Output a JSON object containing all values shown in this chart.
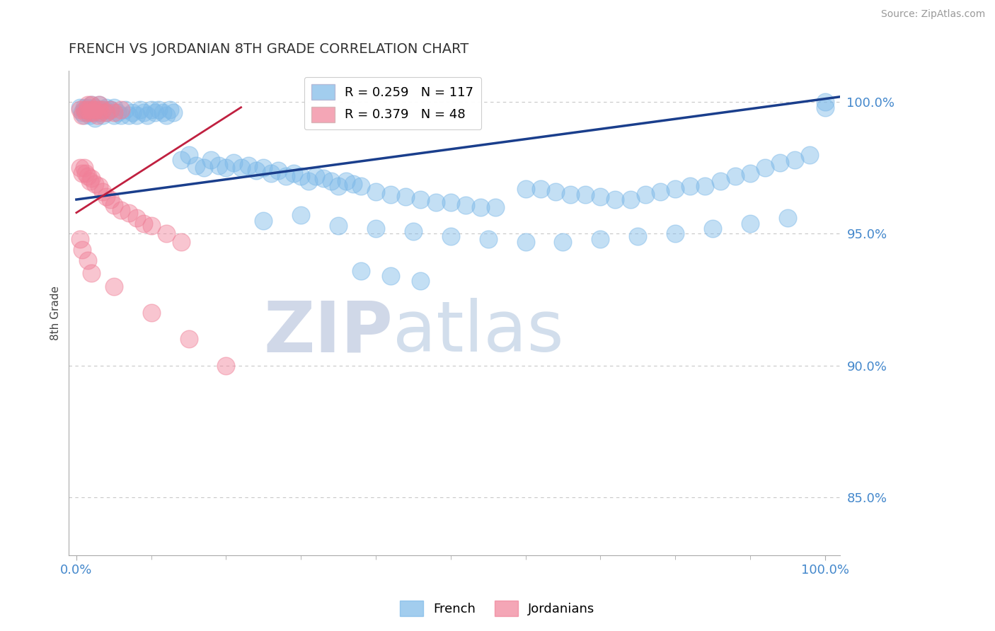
{
  "title": "FRENCH VS JORDANIAN 8TH GRADE CORRELATION CHART",
  "source": "Source: ZipAtlas.com",
  "ylabel": "8th Grade",
  "xlim": [
    -0.01,
    1.02
  ],
  "ylim": [
    0.828,
    1.012
  ],
  "yticks": [
    0.85,
    0.9,
    0.95,
    1.0
  ],
  "ytick_labels": [
    "85.0%",
    "90.0%",
    "95.0%",
    "100.0%"
  ],
  "blue_R": 0.259,
  "blue_N": 117,
  "pink_R": 0.379,
  "pink_N": 48,
  "blue_color": "#7BB8E8",
  "pink_color": "#F08098",
  "blue_line_color": "#1A3E8C",
  "pink_line_color": "#C02040",
  "grid_color": "#C8C8C8",
  "title_color": "#333333",
  "axis_label_color": "#444444",
  "tick_label_color": "#4488CC",
  "watermark_zip": "ZIP",
  "watermark_atlas": "atlas",
  "legend_blue_label": "French",
  "legend_pink_label": "Jordanians",
  "blue_trend_x": [
    0.0,
    1.02
  ],
  "blue_trend_y": [
    0.963,
    1.002
  ],
  "pink_trend_x": [
    0.0,
    0.22
  ],
  "pink_trend_y": [
    0.958,
    0.998
  ],
  "blue_x": [
    0.005,
    0.008,
    0.01,
    0.01,
    0.012,
    0.015,
    0.015,
    0.018,
    0.02,
    0.02,
    0.022,
    0.025,
    0.025,
    0.028,
    0.03,
    0.03,
    0.032,
    0.035,
    0.038,
    0.04,
    0.04,
    0.045,
    0.05,
    0.05,
    0.055,
    0.06,
    0.065,
    0.07,
    0.075,
    0.08,
    0.085,
    0.09,
    0.095,
    0.1,
    0.105,
    0.11,
    0.115,
    0.12,
    0.125,
    0.13,
    0.14,
    0.15,
    0.16,
    0.17,
    0.18,
    0.19,
    0.2,
    0.21,
    0.22,
    0.23,
    0.24,
    0.25,
    0.26,
    0.27,
    0.28,
    0.29,
    0.3,
    0.31,
    0.32,
    0.33,
    0.34,
    0.35,
    0.36,
    0.37,
    0.38,
    0.4,
    0.42,
    0.44,
    0.46,
    0.48,
    0.5,
    0.52,
    0.54,
    0.56,
    0.6,
    0.62,
    0.64,
    0.66,
    0.68,
    0.7,
    0.72,
    0.74,
    0.76,
    0.78,
    0.8,
    0.82,
    0.84,
    0.86,
    0.88,
    0.9,
    0.92,
    0.94,
    0.96,
    0.98,
    1.0,
    0.25,
    0.3,
    0.35,
    0.4,
    0.45,
    0.5,
    0.55,
    0.6,
    0.65,
    0.7,
    0.75,
    0.8,
    0.85,
    0.9,
    0.95,
    1.0,
    0.38,
    0.42,
    0.46
  ],
  "blue_y": [
    0.998,
    0.996,
    0.998,
    0.995,
    0.997,
    0.996,
    0.998,
    0.995,
    0.997,
    0.999,
    0.996,
    0.998,
    0.994,
    0.997,
    0.996,
    0.999,
    0.997,
    0.995,
    0.997,
    0.996,
    0.998,
    0.997,
    0.995,
    0.998,
    0.996,
    0.995,
    0.997,
    0.995,
    0.996,
    0.995,
    0.997,
    0.996,
    0.995,
    0.997,
    0.996,
    0.997,
    0.996,
    0.995,
    0.997,
    0.996,
    0.978,
    0.98,
    0.976,
    0.975,
    0.978,
    0.976,
    0.975,
    0.977,
    0.975,
    0.976,
    0.974,
    0.975,
    0.973,
    0.974,
    0.972,
    0.973,
    0.972,
    0.97,
    0.972,
    0.971,
    0.97,
    0.968,
    0.97,
    0.969,
    0.968,
    0.966,
    0.965,
    0.964,
    0.963,
    0.962,
    0.962,
    0.961,
    0.96,
    0.96,
    0.967,
    0.967,
    0.966,
    0.965,
    0.965,
    0.964,
    0.963,
    0.963,
    0.965,
    0.966,
    0.967,
    0.968,
    0.968,
    0.97,
    0.972,
    0.973,
    0.975,
    0.977,
    0.978,
    0.98,
    1.0,
    0.955,
    0.957,
    0.953,
    0.952,
    0.951,
    0.949,
    0.948,
    0.947,
    0.947,
    0.948,
    0.949,
    0.95,
    0.952,
    0.954,
    0.956,
    0.998,
    0.936,
    0.934,
    0.932
  ],
  "pink_x": [
    0.005,
    0.008,
    0.01,
    0.012,
    0.015,
    0.015,
    0.018,
    0.02,
    0.02,
    0.022,
    0.025,
    0.028,
    0.03,
    0.03,
    0.032,
    0.035,
    0.04,
    0.045,
    0.05,
    0.06,
    0.005,
    0.008,
    0.01,
    0.012,
    0.015,
    0.018,
    0.02,
    0.025,
    0.03,
    0.035,
    0.04,
    0.045,
    0.05,
    0.06,
    0.07,
    0.08,
    0.09,
    0.1,
    0.12,
    0.14,
    0.005,
    0.008,
    0.015,
    0.02,
    0.05,
    0.1,
    0.15,
    0.2
  ],
  "pink_y": [
    0.997,
    0.995,
    0.997,
    0.996,
    0.997,
    0.999,
    0.996,
    0.997,
    0.999,
    0.996,
    0.997,
    0.995,
    0.997,
    0.999,
    0.996,
    0.997,
    0.996,
    0.997,
    0.996,
    0.997,
    0.975,
    0.973,
    0.975,
    0.973,
    0.972,
    0.97,
    0.971,
    0.969,
    0.968,
    0.966,
    0.964,
    0.963,
    0.961,
    0.959,
    0.958,
    0.956,
    0.954,
    0.953,
    0.95,
    0.947,
    0.948,
    0.944,
    0.94,
    0.935,
    0.93,
    0.92,
    0.91,
    0.9
  ]
}
